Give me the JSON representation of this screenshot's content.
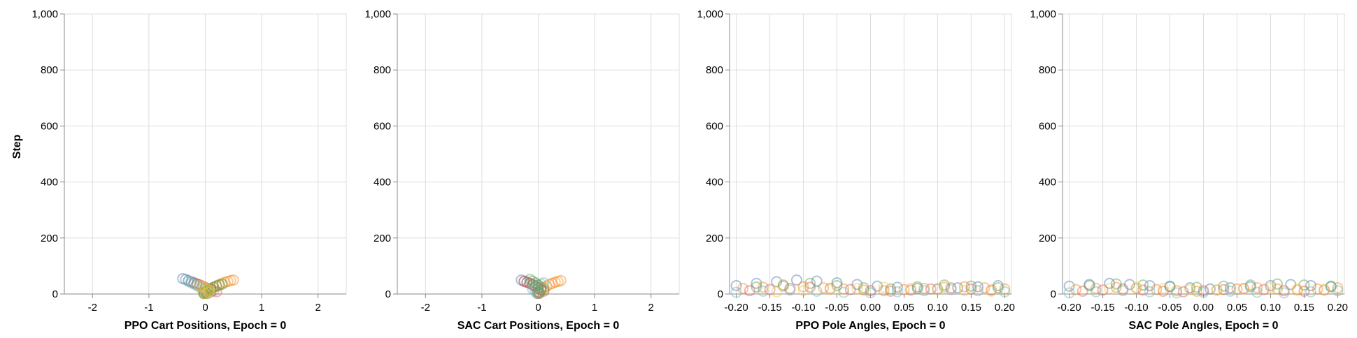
{
  "ylabel": "Step",
  "colors": [
    "#4c78a8",
    "#f58518",
    "#e45756",
    "#72b7b2",
    "#54a24b",
    "#eeca3b",
    "#b279a2",
    "#ff9da6",
    "#9d755d",
    "#bab0ac"
  ],
  "chart_data": [
    {
      "type": "scatter",
      "xlabel": "PPO Cart Positions, Epoch = 0",
      "xlim": [
        -2.5,
        2.5
      ],
      "ylim": [
        0,
        1000
      ],
      "xticks": [
        -2,
        -1,
        0,
        1,
        2
      ],
      "yticks": [
        0,
        200,
        400,
        600,
        800,
        1000
      ],
      "xtick_labels": [
        "-2",
        "-1",
        "0",
        "1",
        "2"
      ],
      "ytick_labels": [
        "0",
        "200",
        "400",
        "600",
        "800",
        "1,000"
      ],
      "grid": true,
      "marker": "open-circle",
      "series": [
        {
          "x": [
            -0.4,
            -0.35,
            -0.3,
            -0.25,
            -0.2,
            -0.15,
            -0.1,
            -0.05,
            0.0,
            0.05,
            0.1,
            0.02,
            -0.02
          ],
          "y": [
            55,
            52,
            48,
            44,
            40,
            36,
            32,
            26,
            20,
            14,
            8,
            4,
            2
          ]
        },
        {
          "x": [
            0.5,
            0.45,
            0.4,
            0.35,
            0.3,
            0.25,
            0.2,
            0.15,
            0.1,
            0.05,
            0.0,
            0.03,
            -0.03
          ],
          "y": [
            50,
            48,
            45,
            42,
            38,
            34,
            30,
            25,
            20,
            15,
            10,
            5,
            2
          ]
        },
        {
          "x": [
            -0.2,
            -0.15,
            -0.1,
            -0.05,
            0.0,
            0.05,
            0.1,
            0.15,
            0.2,
            0.0,
            0.04
          ],
          "y": [
            40,
            36,
            32,
            28,
            24,
            20,
            16,
            12,
            8,
            4,
            2
          ]
        },
        {
          "x": [
            -0.3,
            -0.25,
            -0.2,
            -0.15,
            -0.1,
            -0.05,
            0.0,
            0.05,
            0.02
          ],
          "y": [
            45,
            40,
            36,
            30,
            24,
            18,
            12,
            6,
            2
          ]
        },
        {
          "x": [
            0.3,
            0.25,
            0.2,
            0.15,
            0.1,
            0.05,
            0.0,
            -0.02
          ],
          "y": [
            35,
            32,
            28,
            24,
            18,
            12,
            6,
            2
          ]
        },
        {
          "x": [
            -0.1,
            -0.05,
            0.0,
            0.05,
            0.08,
            0.05,
            0.0
          ],
          "y": [
            30,
            26,
            22,
            16,
            10,
            6,
            2
          ]
        }
      ]
    },
    {
      "type": "scatter",
      "xlabel": "SAC Cart Positions, Epoch = 0",
      "xlim": [
        -2.5,
        2.5
      ],
      "ylim": [
        0,
        1000
      ],
      "xticks": [
        -2,
        -1,
        0,
        1,
        2
      ],
      "yticks": [
        0,
        200,
        400,
        600,
        800,
        1000
      ],
      "xtick_labels": [
        "-2",
        "-1",
        "0",
        "1",
        "2"
      ],
      "ytick_labels": [
        "0",
        "200",
        "400",
        "600",
        "800",
        "1,000"
      ],
      "grid": true,
      "marker": "open-circle",
      "series": [
        {
          "x": [
            -0.3,
            -0.25,
            -0.2,
            -0.15,
            -0.1,
            -0.05,
            0.0,
            0.05,
            0.0,
            -0.02
          ],
          "y": [
            50,
            46,
            42,
            38,
            32,
            26,
            20,
            14,
            8,
            2
          ]
        },
        {
          "x": [
            0.4,
            0.35,
            0.3,
            0.25,
            0.2,
            0.15,
            0.1,
            0.05,
            0.0,
            0.02
          ],
          "y": [
            48,
            45,
            42,
            38,
            34,
            28,
            22,
            16,
            8,
            2
          ]
        },
        {
          "x": [
            -0.25,
            -0.2,
            -0.15,
            -0.1,
            -0.05,
            0.0,
            0.05,
            0.1,
            0.0
          ],
          "y": [
            45,
            42,
            38,
            34,
            28,
            22,
            16,
            10,
            3
          ]
        },
        {
          "x": [
            0.1,
            0.05,
            0.0,
            -0.05,
            -0.1,
            -0.05,
            0.0
          ],
          "y": [
            40,
            36,
            30,
            24,
            18,
            10,
            4
          ]
        },
        {
          "x": [
            -0.15,
            -0.1,
            -0.05,
            0.0,
            0.05,
            0.1,
            0.02
          ],
          "y": [
            52,
            46,
            40,
            32,
            24,
            14,
            4
          ]
        }
      ]
    },
    {
      "type": "scatter",
      "xlabel": "PPO Pole Angles, Epoch = 0",
      "xlim": [
        -0.21,
        0.21
      ],
      "ylim": [
        0,
        1000
      ],
      "xticks": [
        -0.2,
        -0.15,
        -0.1,
        -0.05,
        0.0,
        0.05,
        0.1,
        0.15,
        0.2
      ],
      "yticks": [
        0,
        200,
        400,
        600,
        800,
        1000
      ],
      "xtick_labels": [
        "-0.20",
        "-0.15",
        "-0.10",
        "-0.05",
        "0.00",
        "0.05",
        "0.10",
        "0.15",
        "0.20"
      ],
      "ytick_labels": [
        "0",
        "200",
        "400",
        "600",
        "800",
        "1,000"
      ],
      "grid": true,
      "marker": "open-circle",
      "series": [
        {
          "x": [
            -0.2,
            -0.17,
            -0.14,
            -0.11,
            -0.08,
            -0.05,
            -0.02,
            0.01,
            0.04,
            0.07,
            0.1,
            0.13,
            0.16,
            0.19
          ],
          "y": [
            30,
            38,
            44,
            50,
            46,
            40,
            34,
            28,
            24,
            20,
            18,
            22,
            26,
            30
          ]
        },
        {
          "x": [
            -0.19,
            -0.16,
            -0.13,
            -0.1,
            -0.07,
            -0.04,
            -0.01,
            0.02,
            0.05,
            0.08,
            0.11,
            0.14,
            0.17,
            0.2
          ],
          "y": [
            20,
            24,
            28,
            26,
            22,
            18,
            14,
            12,
            16,
            20,
            24,
            26,
            22,
            18
          ]
        },
        {
          "x": [
            -0.18,
            -0.15,
            -0.12,
            -0.09,
            -0.06,
            -0.03,
            0.0,
            0.03,
            0.06,
            0.09,
            0.12,
            0.15,
            0.18
          ],
          "y": [
            12,
            16,
            20,
            24,
            20,
            16,
            12,
            10,
            14,
            18,
            22,
            18,
            14
          ]
        },
        {
          "x": [
            -0.2,
            -0.16,
            -0.12,
            -0.08,
            -0.04,
            0.0,
            0.04,
            0.08,
            0.12,
            0.16,
            0.2
          ],
          "y": [
            6,
            10,
            14,
            10,
            6,
            4,
            8,
            12,
            16,
            12,
            8
          ]
        },
        {
          "x": [
            -0.17,
            -0.13,
            -0.09,
            -0.05,
            -0.01,
            0.03,
            0.07,
            0.11,
            0.15,
            0.19
          ],
          "y": [
            25,
            32,
            38,
            30,
            22,
            18,
            26,
            32,
            28,
            22
          ]
        },
        {
          "x": [
            -0.14,
            -0.1,
            -0.06,
            -0.02,
            0.02,
            0.06,
            0.1,
            0.14,
            0.18
          ],
          "y": [
            8,
            12,
            16,
            20,
            24,
            20,
            16,
            12,
            10
          ]
        }
      ]
    },
    {
      "type": "scatter",
      "xlabel": "SAC Pole Angles, Epoch = 0",
      "xlim": [
        -0.21,
        0.21
      ],
      "ylim": [
        0,
        1000
      ],
      "xticks": [
        -0.2,
        -0.15,
        -0.1,
        -0.05,
        0.0,
        0.05,
        0.1,
        0.15,
        0.2
      ],
      "yticks": [
        0,
        200,
        400,
        600,
        800,
        1000
      ],
      "xtick_labels": [
        "-0.20",
        "-0.15",
        "-0.10",
        "-0.05",
        "0.00",
        "0.05",
        "0.10",
        "0.15",
        "0.20"
      ],
      "ytick_labels": [
        "0",
        "200",
        "400",
        "600",
        "800",
        "1,000"
      ],
      "grid": true,
      "marker": "open-circle",
      "series": [
        {
          "x": [
            -0.2,
            -0.17,
            -0.14,
            -0.11,
            -0.08,
            -0.05,
            -0.02,
            0.01,
            0.04,
            0.07,
            0.1,
            0.13,
            0.16,
            0.19
          ],
          "y": [
            28,
            34,
            38,
            34,
            30,
            26,
            22,
            18,
            22,
            26,
            30,
            34,
            30,
            26
          ]
        },
        {
          "x": [
            -0.19,
            -0.16,
            -0.13,
            -0.1,
            -0.07,
            -0.04,
            -0.01,
            0.02,
            0.05,
            0.08,
            0.11,
            0.14,
            0.17,
            0.2
          ],
          "y": [
            16,
            20,
            24,
            20,
            16,
            12,
            10,
            14,
            18,
            22,
            18,
            14,
            18,
            22
          ]
        },
        {
          "x": [
            -0.18,
            -0.15,
            -0.12,
            -0.09,
            -0.06,
            -0.03,
            0.0,
            0.03,
            0.06,
            0.09,
            0.12,
            0.15,
            0.18
          ],
          "y": [
            10,
            14,
            18,
            14,
            10,
            8,
            12,
            16,
            20,
            16,
            12,
            10,
            14
          ]
        },
        {
          "x": [
            -0.2,
            -0.16,
            -0.12,
            -0.08,
            -0.04,
            0.0,
            0.04,
            0.08,
            0.12,
            0.16,
            0.2
          ],
          "y": [
            4,
            8,
            12,
            8,
            4,
            6,
            10,
            6,
            4,
            8,
            12
          ]
        },
        {
          "x": [
            -0.17,
            -0.13,
            -0.09,
            -0.05,
            -0.01,
            0.03,
            0.07,
            0.11,
            0.15,
            0.19
          ],
          "y": [
            30,
            36,
            32,
            28,
            24,
            28,
            32,
            36,
            32,
            28
          ]
        },
        {
          "x": [
            -0.14,
            -0.1,
            -0.06,
            -0.02,
            0.02,
            0.06,
            0.1,
            0.14,
            0.18
          ],
          "y": [
            20,
            24,
            20,
            16,
            14,
            18,
            22,
            18,
            16
          ]
        }
      ]
    }
  ]
}
